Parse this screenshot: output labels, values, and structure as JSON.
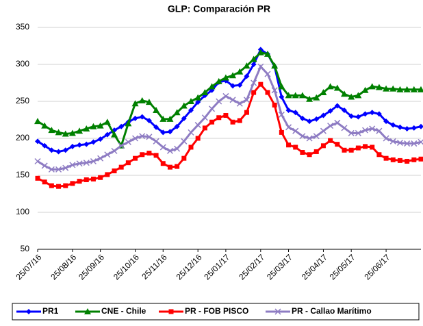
{
  "chart_data": {
    "type": "line",
    "title": "GLP: Comparación PR",
    "categories": [
      "25/07/16",
      null,
      null,
      null,
      null,
      "25/08/16",
      null,
      null,
      null,
      "25/09/16",
      null,
      null,
      null,
      null,
      "25/10/16",
      null,
      null,
      null,
      "25/11/16",
      null,
      null,
      null,
      null,
      "25/12/16",
      null,
      null,
      null,
      "25/01/17",
      null,
      null,
      null,
      null,
      "25/02/17",
      null,
      null,
      null,
      "25/03/17",
      null,
      null,
      null,
      null,
      "25/04/17",
      null,
      null,
      null,
      "25/05/17",
      null,
      null,
      null,
      null,
      "25/06/17",
      null,
      null,
      null,
      null,
      null
    ],
    "series": [
      {
        "name": "PR1",
        "color": "#0000ff",
        "marker": "diamond",
        "values": [
          196,
          190,
          184,
          182,
          184,
          189,
          191,
          192,
          195,
          199,
          205,
          211,
          216,
          222,
          227,
          229,
          224,
          215,
          208,
          209,
          216,
          227,
          238,
          249,
          258,
          265,
          276,
          278,
          271,
          272,
          284,
          300,
          320,
          314,
          297,
          256,
          238,
          235,
          227,
          223,
          226,
          231,
          237,
          244,
          238,
          230,
          229,
          233,
          235,
          233,
          223,
          218,
          215,
          213,
          214,
          216
        ]
      },
      {
        "name": "CNE - Chile",
        "color": "#008000",
        "marker": "triangle",
        "values": [
          223,
          217,
          211,
          208,
          206,
          207,
          210,
          213,
          216,
          217,
          222,
          205,
          190,
          220,
          247,
          251,
          249,
          238,
          226,
          226,
          235,
          244,
          250,
          255,
          262,
          270,
          277,
          282,
          285,
          290,
          298,
          307,
          316,
          314,
          298,
          270,
          258,
          258,
          258,
          253,
          255,
          262,
          270,
          268,
          260,
          256,
          258,
          265,
          270,
          269,
          267,
          267,
          266,
          266,
          266,
          266
        ]
      },
      {
        "name": "PR - FOB PISCO",
        "color": "#ff0000",
        "marker": "square",
        "values": [
          146,
          141,
          136,
          135,
          136,
          139,
          142,
          144,
          145,
          147,
          151,
          156,
          161,
          167,
          173,
          178,
          180,
          177,
          166,
          161,
          162,
          173,
          188,
          200,
          214,
          222,
          228,
          231,
          222,
          224,
          235,
          262,
          273,
          262,
          245,
          208,
          191,
          188,
          181,
          178,
          182,
          190,
          197,
          192,
          184,
          184,
          187,
          189,
          188,
          178,
          173,
          171,
          170,
          169,
          171,
          172
        ]
      },
      {
        "name": "PR - Callao Marítimo",
        "color": "#8e7cc3",
        "marker": "x",
        "values": [
          169,
          163,
          158,
          158,
          160,
          164,
          166,
          167,
          169,
          173,
          178,
          183,
          190,
          195,
          200,
          203,
          202,
          196,
          188,
          183,
          186,
          196,
          208,
          218,
          228,
          240,
          250,
          257,
          252,
          247,
          252,
          275,
          297,
          287,
          265,
          232,
          215,
          210,
          203,
          200,
          203,
          210,
          217,
          221,
          214,
          207,
          207,
          211,
          213,
          210,
          200,
          196,
          194,
          193,
          193,
          195
        ]
      }
    ],
    "ylim": [
      50,
      350
    ],
    "yticks": [
      50,
      100,
      150,
      200,
      250,
      300,
      350
    ],
    "grid": true,
    "legend": "bottom"
  }
}
